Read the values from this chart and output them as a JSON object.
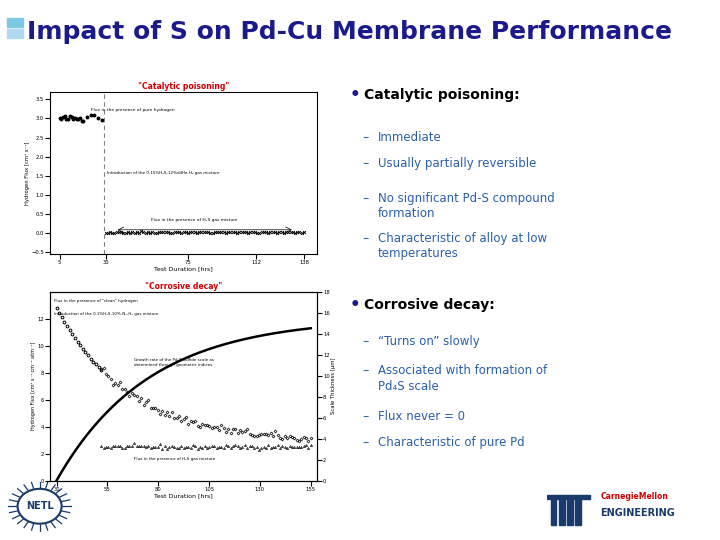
{
  "title": "Impact of S on Pd-Cu Membrane Performance",
  "title_color": "#1a1a8c",
  "title_fontsize": 18,
  "background_color": "#ffffff",
  "bullet1_header": "Catalytic poisoning:",
  "bullet1_items": [
    "Immediate",
    "Usually partially reversible",
    "No significant Pd-S compound\nformation",
    "Characteristic of alloy at low\ntemperatures"
  ],
  "bullet2_header": "Corrosive decay:",
  "bullet2_items": [
    "“Turns on” slowly",
    "Associated with formation of\nPd₄S scale",
    "Flux never = 0",
    "Characteristic of pure Pd"
  ],
  "dash_color": "#2b5faa",
  "header_color": "#000000",
  "plot1_title": "\"Catalytic poisoning\"",
  "plot1_title_color": "#cc0000",
  "plot1_xlabel": "Test Duration [hrs]",
  "plot2_title": "\"Corrosive decay\"",
  "plot2_title_color": "#cc0000",
  "plot2_xlabel": "Test Duration [hrs]",
  "footer_bar_color": "#d4a020",
  "accent_color1": "#7ec8e3",
  "accent_color2": "#b0d8ee"
}
